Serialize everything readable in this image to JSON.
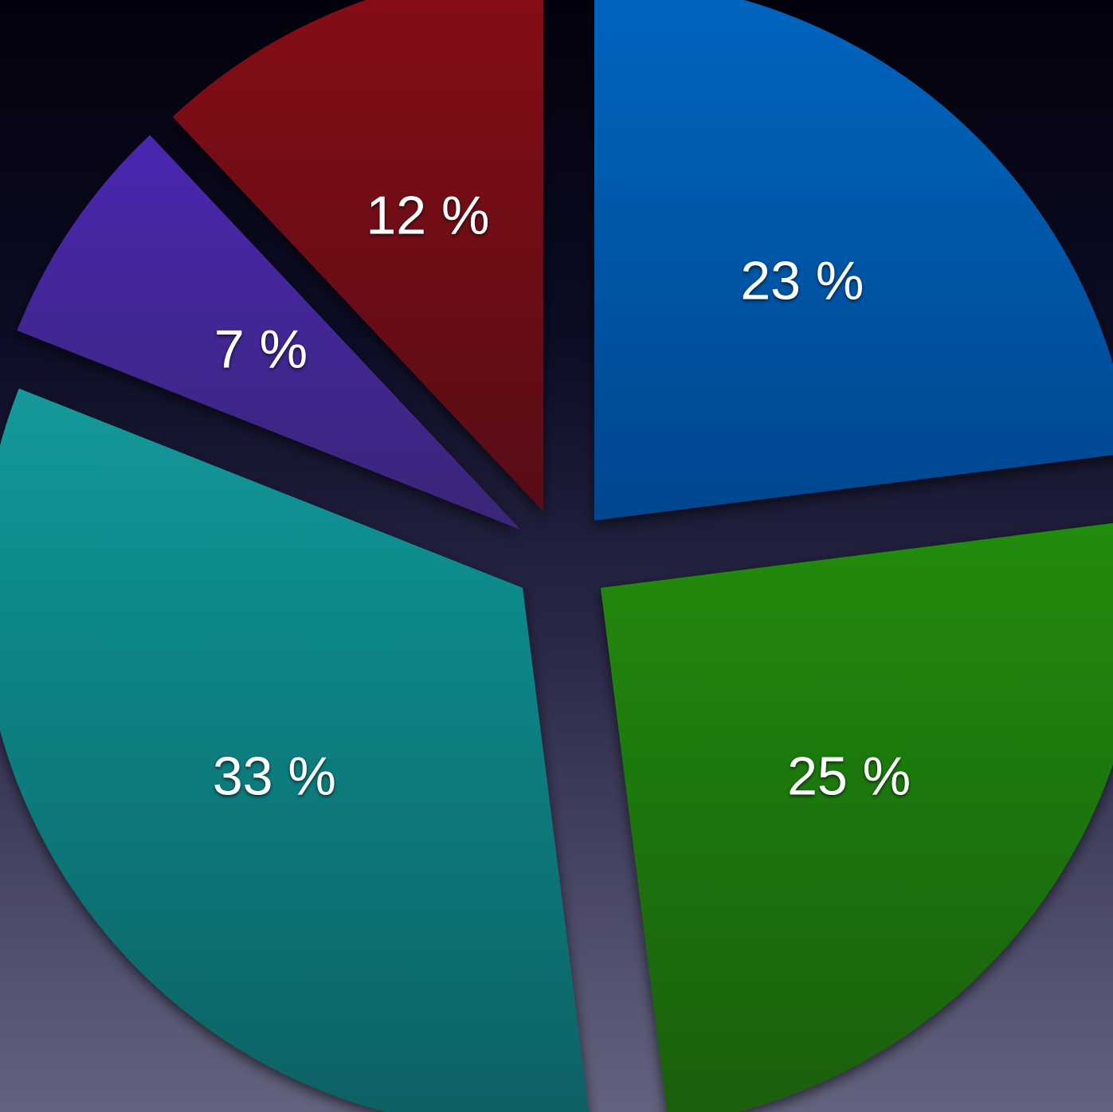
{
  "chart_data": {
    "type": "pie",
    "start_angle_deg": 0,
    "direction": "clockwise",
    "exploded": true,
    "legend": "none",
    "label_format": "{value} %",
    "slices": [
      {
        "value": 23,
        "label": "23 %",
        "color_top": "#0166c0",
        "color_bottom": "#06468f"
      },
      {
        "value": 25,
        "label": "25 %",
        "color_top": "#228c0c",
        "color_bottom": "#1a5e0a"
      },
      {
        "value": 33,
        "label": "33 %",
        "color_top": "#12999b",
        "color_bottom": "#0e6063"
      },
      {
        "value": 7,
        "label": "7 %",
        "color_top": "#4a28b0",
        "color_bottom": "#3a2878"
      },
      {
        "value": 12,
        "label": "12 %",
        "color_top": "#871018",
        "color_bottom": "#570f17"
      }
    ]
  }
}
